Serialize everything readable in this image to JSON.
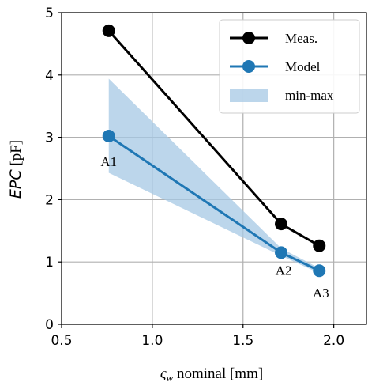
{
  "chart_data": {
    "type": "line",
    "xlabel": {
      "symbol": "ς",
      "subscript": "w",
      "text": " nominal [mm]"
    },
    "ylabel": {
      "italic": "EPC",
      "text": " [pF]"
    },
    "xlim": [
      0.5,
      2.18
    ],
    "ylim": [
      0,
      5
    ],
    "xticks": [
      "0.5",
      "1.0",
      "1.5",
      "2.0"
    ],
    "xtick_values": [
      0.5,
      1.0,
      1.5,
      2.0
    ],
    "yticks": [
      "0",
      "1",
      "2",
      "3",
      "4",
      "5"
    ],
    "ytick_values": [
      0,
      1,
      2,
      3,
      4,
      5
    ],
    "grid": true,
    "legend_position": "top-right",
    "series": [
      {
        "name": "Meas.",
        "color": "#000000",
        "x": [
          0.76,
          1.71,
          1.92
        ],
        "y": [
          4.71,
          1.61,
          1.26
        ]
      },
      {
        "name": "Model",
        "color": "#1f77b4",
        "x": [
          0.76,
          1.71,
          1.92
        ],
        "y": [
          3.02,
          1.15,
          0.86
        ]
      }
    ],
    "band": {
      "name": "min-max",
      "color": "#a6c8e4",
      "x": [
        0.76,
        1.71,
        1.92
      ],
      "ymin": [
        2.43,
        1.1,
        0.82
      ],
      "ymax": [
        3.94,
        1.22,
        0.9
      ]
    },
    "annotations": [
      {
        "text": "A1",
        "x": 0.76,
        "y": 3.02
      },
      {
        "text": "A2",
        "x": 1.71,
        "y": 1.15
      },
      {
        "text": "A3",
        "x": 1.92,
        "y": 0.86
      }
    ]
  }
}
